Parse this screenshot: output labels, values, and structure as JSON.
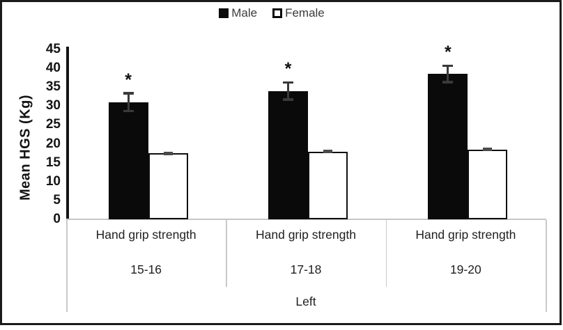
{
  "legend": {
    "male": "Male",
    "female": "Female"
  },
  "colors": {
    "bar_male": "#0a0a0a",
    "bar_female_fill": "#ffffff",
    "bar_female_border": "#0f0f0f",
    "error_bar": "#3a3a3a",
    "female_error_cap": "#4a4a4a",
    "axis_line": "#141414",
    "divider": "#c9c9c9",
    "baseline": "#c6c6c6",
    "figure_border": "#1b1b1b",
    "text": "#1f1f1f"
  },
  "chart_data": {
    "type": "bar",
    "title": "",
    "ylabel": "Mean HGS (Kg)",
    "xlabel": "",
    "ylim": [
      0,
      45
    ],
    "yticks": [
      0,
      5,
      10,
      15,
      20,
      25,
      30,
      35,
      40,
      45
    ],
    "grid": false,
    "legend_position": "top",
    "categories": [
      "15-16",
      "17-18",
      "19-20"
    ],
    "group_label": "Hand grip strength",
    "axis_group_label": "Left",
    "series": [
      {
        "name": "Male",
        "style": "solid",
        "color": "#0a0a0a",
        "values": [
          31,
          34,
          38.5
        ],
        "errors": [
          2.4,
          2.3,
          2.2
        ],
        "significance": [
          "*",
          "*",
          "*"
        ]
      },
      {
        "name": "Female",
        "style": "outline",
        "color": "#ffffff",
        "border_color": "#0f0f0f",
        "values": [
          17.5,
          17.9,
          18.5
        ],
        "errors": [
          0.3,
          0.3,
          0.3
        ],
        "significance": [
          "",
          "",
          ""
        ]
      }
    ]
  }
}
